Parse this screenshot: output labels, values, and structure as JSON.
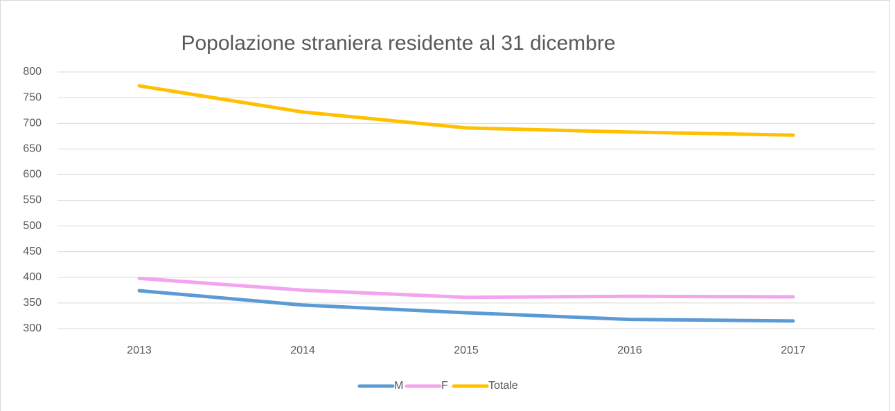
{
  "chart_data": {
    "type": "line",
    "title": "Popolazione straniera residente al 31 dicembre",
    "categories": [
      "2013",
      "2014",
      "2015",
      "2016",
      "2017"
    ],
    "series": [
      {
        "name": "M",
        "color": "#5b9bd5",
        "values": [
          374,
          346,
          331,
          318,
          315
        ]
      },
      {
        "name": "F",
        "color": "#f2a4ee",
        "values": [
          398,
          375,
          361,
          363,
          362
        ]
      },
      {
        "name": "Totale",
        "color": "#ffc000",
        "values": [
          773,
          722,
          691,
          683,
          677
        ]
      }
    ],
    "ylim": [
      300,
      800
    ],
    "yticks": [
      300,
      350,
      400,
      450,
      500,
      550,
      600,
      650,
      700,
      750,
      800
    ],
    "grid": true,
    "legend": "bottom"
  }
}
